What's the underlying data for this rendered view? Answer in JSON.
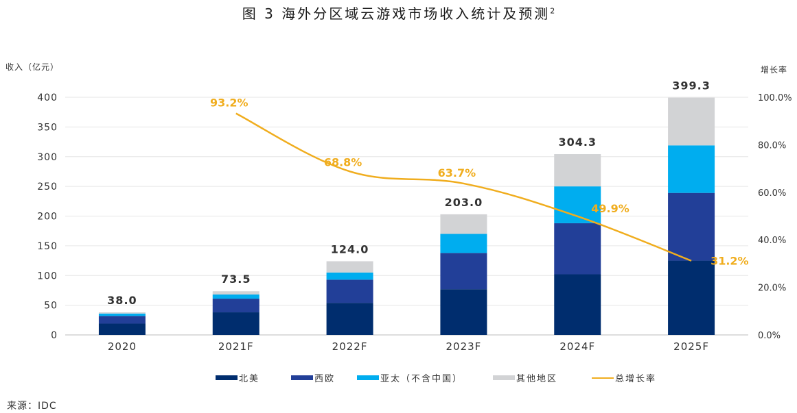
{
  "title": "图 3  海外分区域云游戏市场收入统计及预测",
  "title_sup": "2",
  "source": "来源：IDC",
  "colors": {
    "north_america": "#002d6e",
    "western_europe": "#223f98",
    "asia_pacific": "#00adef",
    "other": "#d2d3d5",
    "growth": "#f0ad1e",
    "growth_label": "#f0ad1e",
    "grid": "#e6e6e6"
  },
  "chart_data": {
    "type": "bar",
    "subtype": "stacked-bar-with-line",
    "title": "图 3  海外分区域云游戏市场收入统计及预测",
    "categories": [
      "2020",
      "2021F",
      "2022F",
      "2023F",
      "2024F",
      "2025F"
    ],
    "ylabel": "收入（亿元）",
    "y2label": "增长率",
    "ylim": [
      0,
      400
    ],
    "yticks": [
      "0",
      "50",
      "100",
      "150",
      "200",
      "250",
      "300",
      "350",
      "400"
    ],
    "y2lim": [
      0,
      100
    ],
    "y2ticks": [
      "0.0%",
      "20.0%",
      "40.0%",
      "60.0%",
      "80.0%",
      "100.0%"
    ],
    "grid": true,
    "legend_position": "bottom",
    "series": [
      {
        "name": "北美",
        "key": "north_america",
        "values": [
          19,
          38,
          54,
          77,
          102,
          125
        ]
      },
      {
        "name": "西欧",
        "key": "western_europe",
        "values": [
          13,
          23,
          39,
          61,
          86,
          114
        ]
      },
      {
        "name": "亚太（不含中国）",
        "key": "asia_pacific",
        "values": [
          4,
          7,
          12,
          32,
          62,
          80
        ]
      },
      {
        "name": "其他地区",
        "key": "other",
        "values": [
          2,
          5.5,
          19,
          33,
          54.3,
          80.3
        ]
      }
    ],
    "totals": [
      "38.0",
      "73.5",
      "124.0",
      "203.0",
      "304.3",
      "399.3"
    ],
    "line": {
      "name": "总增长率",
      "axis": "secondary",
      "values": [
        null,
        93.2,
        68.8,
        63.7,
        49.9,
        31.2
      ],
      "labels": [
        null,
        "93.2%",
        "68.8%",
        "63.7%",
        "49.9%",
        "31.2%"
      ]
    }
  },
  "legend": [
    {
      "label": "北美",
      "kind": "bar",
      "color_key": "north_america"
    },
    {
      "label": "西欧",
      "kind": "bar",
      "color_key": "western_europe"
    },
    {
      "label": "亚太（不含中国）",
      "kind": "bar",
      "color_key": "asia_pacific"
    },
    {
      "label": "其他地区",
      "kind": "bar",
      "color_key": "other"
    },
    {
      "label": "总增长率",
      "kind": "line",
      "color_key": "growth"
    }
  ]
}
